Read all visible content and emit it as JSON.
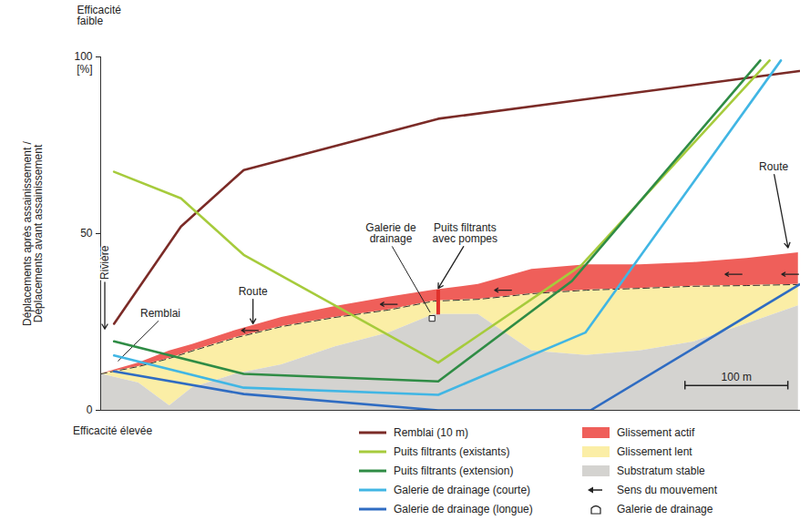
{
  "chart_data": {
    "type": "line",
    "ylabel": "Déplacements après assainissement / Déplacements avant assainissement",
    "y_unit": "[%]",
    "top_label": "Efficacité faible",
    "bottom_label": "Efficacité élevée",
    "xlim": [
      0,
      680
    ],
    "ylim": [
      0,
      100
    ],
    "yticks": [
      0,
      50,
      100
    ],
    "tick_labels": "y",
    "legend": "bottom",
    "series": [
      {
        "name": "Remblai (10 m)",
        "color": "#7b2b27",
        "x": [
          13,
          78,
          139,
          328,
          471,
          679
        ],
        "values": [
          24.5,
          52,
          68,
          82.5,
          88,
          96
        ]
      },
      {
        "name": "Puits filtrants (existants)",
        "color": "#a6cb3c",
        "x": [
          13,
          78,
          139,
          328,
          467,
          650
        ],
        "values": [
          67.5,
          60,
          44,
          13.5,
          41,
          99
        ]
      },
      {
        "name": "Puits filtrants (extension)",
        "color": "#2f8c45",
        "x": [
          13,
          139,
          328,
          458,
          641
        ],
        "values": [
          19.5,
          10.3,
          8.2,
          36.6,
          99
        ]
      },
      {
        "name": "Galerie de drainage (courte)",
        "color": "#41b6e4",
        "x": [
          13,
          139,
          328,
          471,
          661
        ],
        "values": [
          15.5,
          6.4,
          4.4,
          22,
          99
        ]
      },
      {
        "name": "Galerie de drainage (longue)",
        "color": "#2f6cc2",
        "x": [
          13,
          139,
          328,
          476,
          679
        ],
        "values": [
          11,
          4.6,
          0,
          0,
          35.6
        ]
      }
    ],
    "layers": [
      {
        "name": "Glissement actif",
        "color": "#ef5f5a",
        "line_style": "dashed",
        "x": [
          0,
          37,
          67,
          89,
          132,
          176,
          228,
          280,
          324,
          367,
          419,
          472,
          524,
          576,
          628,
          678
        ],
        "lower": [
          10.3,
          12.4,
          14.7,
          16.8,
          20.6,
          23.7,
          26.3,
          28.4,
          30.9,
          31.4,
          33,
          34,
          34.5,
          35.1,
          35.3,
          35.6
        ],
        "upper": [
          10.3,
          13.4,
          16.8,
          18.6,
          22.7,
          26.3,
          29.4,
          32,
          34,
          35.6,
          39.9,
          41.2,
          41.2,
          41.8,
          43,
          44.6
        ]
      },
      {
        "name": "Glissement lent",
        "color": "#fbeea6",
        "x": [
          0,
          37,
          67,
          89,
          132,
          176,
          228,
          280,
          324,
          367,
          419,
          472,
          524,
          576,
          628,
          678
        ],
        "lower": [
          10.3,
          7.7,
          1.3,
          6.4,
          10.3,
          12.9,
          18,
          21.9,
          27.1,
          27.1,
          16.8,
          15.5,
          16.8,
          19.3,
          24.5,
          29.6
        ],
        "upper": [
          10.3,
          12.4,
          14.7,
          16.8,
          20.6,
          23.7,
          26.3,
          28.4,
          30.9,
          31.4,
          33,
          34,
          34.5,
          35.1,
          35.3,
          35.6
        ]
      },
      {
        "name": "Substratum stable",
        "color": "#d4d3d0",
        "x": [
          0,
          37,
          67,
          89,
          132,
          176,
          228,
          280,
          324,
          367,
          419,
          472,
          524,
          576,
          628,
          678
        ],
        "lower": [
          0,
          0,
          0,
          0,
          0,
          0,
          0,
          0,
          0,
          0,
          0,
          0,
          0,
          0,
          0,
          0
        ],
        "upper": [
          10.3,
          7.7,
          1.3,
          6.4,
          10.3,
          12.9,
          18,
          21.9,
          27.1,
          27.1,
          16.8,
          15.5,
          16.8,
          19.3,
          24.5,
          29.6
        ]
      }
    ],
    "legend_items": [
      {
        "name": "Sens du mouvement",
        "marker": "arrow"
      },
      {
        "name": "Galerie de drainage",
        "marker": "gallery"
      }
    ],
    "movement": [
      {
        "x": 145,
        "y": 22.6
      },
      {
        "x": 280,
        "y": 30
      },
      {
        "x": 391,
        "y": 34
      },
      {
        "x": 615,
        "y": 38.5
      },
      {
        "x": 670,
        "y": 38.5
      }
    ],
    "galerie": {
      "x": 322,
      "y": 26
    },
    "puits": {
      "x": 328,
      "y1": 27,
      "y2": 34
    },
    "annotations": [
      {
        "text": "Rivière",
        "x": 4,
        "y": 37,
        "x_to": 4,
        "y_to": 23,
        "marker": "arrow",
        "orientation": "vertical"
      },
      {
        "text": "Remblai",
        "x": 58,
        "y": 25.8,
        "x_to": 17,
        "y_to": 14,
        "marker": "none"
      },
      {
        "text": "Route",
        "x": 148,
        "y": 32.2,
        "x_to": 148,
        "y_to": 24.5,
        "marker": "arrow"
      },
      {
        "text": "Galerie de drainage",
        "x": 282,
        "y": 47,
        "x_to": 320,
        "y_to": 27.8,
        "marker": "none"
      },
      {
        "text": "Puits filtrants avec pompes",
        "x": 354,
        "y": 47,
        "x_to": 328,
        "y_to": 34.5,
        "marker": "arrow"
      },
      {
        "text": "Route",
        "x": 654,
        "y": 67.5,
        "x_to": 668,
        "y_to": 46,
        "marker": "arrow"
      }
    ],
    "scale_bar": {
      "length": 100,
      "label": "100 m"
    }
  }
}
